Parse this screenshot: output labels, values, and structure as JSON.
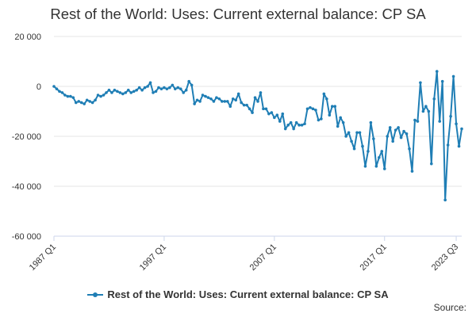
{
  "chart_data": {
    "type": "line",
    "title": "Rest of the World: Uses: Current external balance: CP SA",
    "xlabel": "",
    "ylabel": "",
    "ylim": [
      -60000,
      20000
    ],
    "y_ticks": [
      "20 000",
      "0",
      "-20 000",
      "-40 000",
      "-60 000"
    ],
    "y_tick_values": [
      20000,
      0,
      -20000,
      -40000,
      -60000
    ],
    "x_ticks": [
      "1987 Q1",
      "1997 Q1",
      "2007 Q1",
      "2017 Q1",
      "2023 Q3"
    ],
    "x_tick_index": [
      0,
      40,
      80,
      120,
      146
    ],
    "grid": "horizontal",
    "legend": "bottom",
    "series": [
      {
        "name": "Rest of the World: Uses: Current external balance: CP SA",
        "color": "#1f7eb5",
        "start": "1987 Q1",
        "end": "2023 Q3",
        "frequency": "quarterly",
        "values": [
          0,
          -1000,
          -2000,
          -2500,
          -3500,
          -4000,
          -4000,
          -4500,
          -6500,
          -6000,
          -6500,
          -7000,
          -5500,
          -6000,
          -6500,
          -5500,
          -3500,
          -4000,
          -3500,
          -2500,
          -1500,
          -2500,
          -1500,
          -2000,
          -2500,
          -3000,
          -2500,
          -1500,
          -2500,
          -2000,
          -1500,
          -500,
          -1500,
          -500,
          0,
          1500,
          -2500,
          -2000,
          -500,
          -1000,
          -500,
          -1000,
          -500,
          500,
          -1000,
          -500,
          -1000,
          -2500,
          -1500,
          2000,
          500,
          -7000,
          -5500,
          -6000,
          -3500,
          -4000,
          -4500,
          -5000,
          -6000,
          -4500,
          -5000,
          -6000,
          -6000,
          -6000,
          -8000,
          -5000,
          -5500,
          -3000,
          -6500,
          -7500,
          -7500,
          -9000,
          -10500,
          -4500,
          -6000,
          -2500,
          -9000,
          -9000,
          -11000,
          -10500,
          -12500,
          -11500,
          -14000,
          -11000,
          -17000,
          -15500,
          -14500,
          -17000,
          -14500,
          -15500,
          -15500,
          -15000,
          -9000,
          -8500,
          -9000,
          -9500,
          -13500,
          -13000,
          -3000,
          -5000,
          -11500,
          -8000,
          -8000,
          -16000,
          -12500,
          -14500,
          -20000,
          -18500,
          -22000,
          -25000,
          -18500,
          -18500,
          -24000,
          -32000,
          -26000,
          -14500,
          -21000,
          -32000,
          -28500,
          -26000,
          -33000,
          -20000,
          -16500,
          -22000,
          -17500,
          -16500,
          -20500,
          -18000,
          -19000,
          -25000,
          -34000,
          -13500,
          -14000,
          1500,
          -10000,
          -8000,
          -10000,
          -31000,
          -5000,
          6000,
          -14000,
          2000,
          -45500,
          -23500,
          -12000,
          4000,
          -15000,
          -24000,
          -17000
        ]
      }
    ]
  },
  "legend_label": "Rest of the World: Uses: Current external balance: CP SA",
  "source_label": "Source:"
}
